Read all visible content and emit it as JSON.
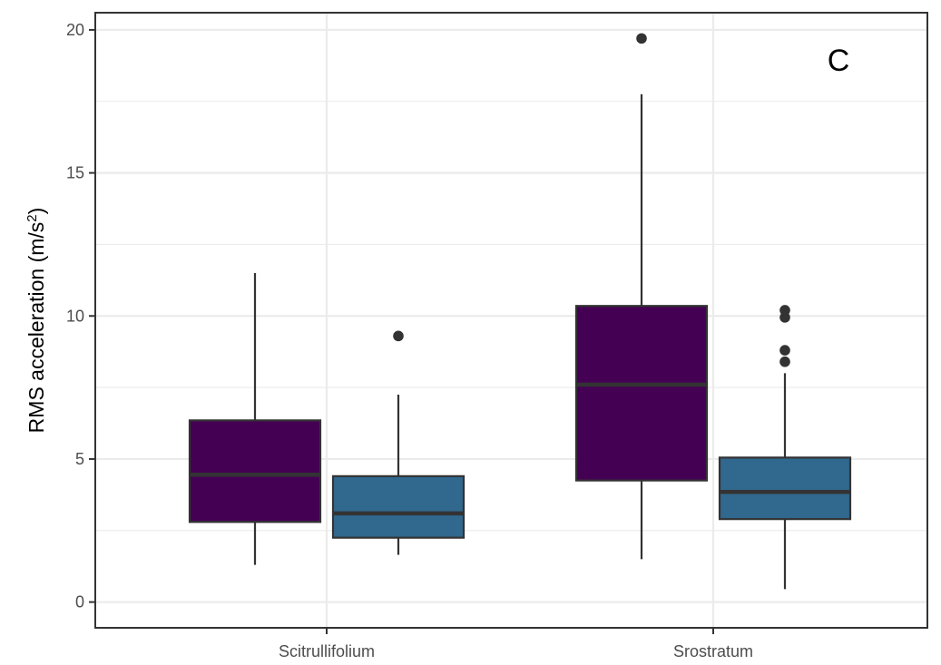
{
  "chart_data": {
    "type": "boxplot",
    "panel_label": "C",
    "ylabel": "RMS acceleration (m/s²)",
    "ylabel_main": "RMS acceleration (m/s",
    "ylabel_sup": "2",
    "ylabel_close": ")",
    "xlabel": "",
    "categories": [
      "Scitrullifolium",
      "Srostratum"
    ],
    "ylim": [
      -0.9,
      20.6
    ],
    "yticks": [
      0,
      5,
      10,
      15,
      20
    ],
    "yticklabels": [
      "0",
      "5",
      "10",
      "15",
      "20"
    ],
    "grid": true,
    "legend": "none",
    "series": [
      {
        "fill": "#440154",
        "boxes": [
          {
            "category": "Scitrullifolium",
            "whisker_low": 1.3,
            "q1": 2.8,
            "median": 4.45,
            "q3": 6.35,
            "whisker_high": 11.5,
            "outliers": []
          },
          {
            "category": "Srostratum",
            "whisker_low": 1.5,
            "q1": 4.25,
            "median": 7.6,
            "q3": 10.35,
            "whisker_high": 17.75,
            "outliers": [
              19.7
            ]
          }
        ]
      },
      {
        "fill": "#31688e",
        "boxes": [
          {
            "category": "Scitrullifolium",
            "whisker_low": 1.65,
            "q1": 2.25,
            "median": 3.1,
            "q3": 4.4,
            "whisker_high": 7.25,
            "outliers": [
              9.3
            ]
          },
          {
            "category": "Srostratum",
            "whisker_low": 0.45,
            "q1": 2.9,
            "median": 3.85,
            "q3": 5.05,
            "whisker_high": 8.0,
            "outliers": [
              8.4,
              8.8,
              9.95,
              10.2
            ]
          }
        ]
      }
    ],
    "colors": {
      "grid": "#ebebeb",
      "box_line": "#333333",
      "outlier": "#333333",
      "panel_border": "#333333",
      "tick_text": "#4d4d4d"
    }
  }
}
